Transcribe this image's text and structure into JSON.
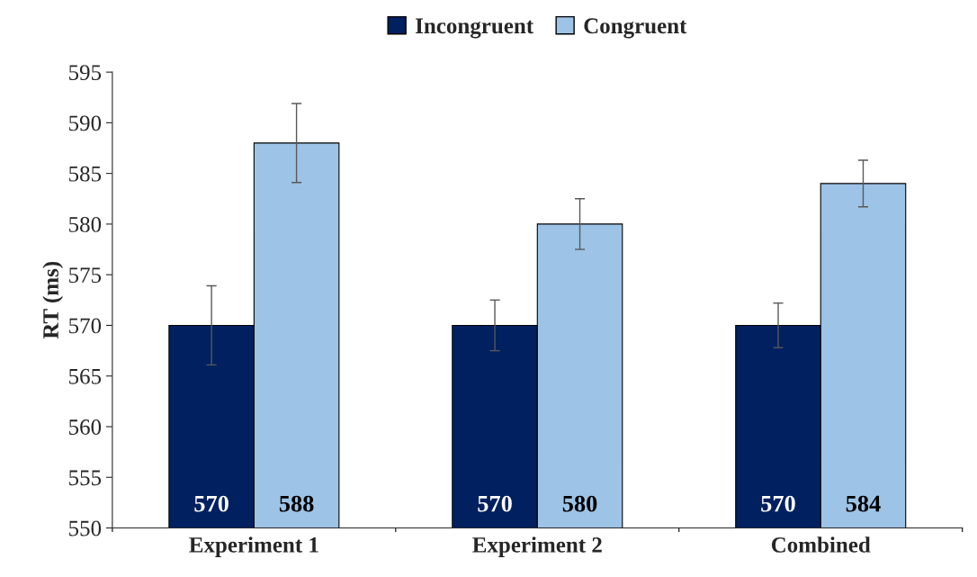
{
  "chart_data": {
    "type": "bar",
    "ylabel": "RT (ms)",
    "categories": [
      "Experiment 1",
      "Experiment 2",
      "Combined"
    ],
    "series": [
      {
        "name": "Incongruent",
        "color": "#002060",
        "values": [
          570,
          570,
          570
        ],
        "errors": [
          3.9,
          2.5,
          2.2
        ]
      },
      {
        "name": "Congruent",
        "color": "#9dc3e6",
        "values": [
          588,
          580,
          584
        ],
        "errors": [
          3.9,
          2.5,
          2.3
        ]
      }
    ],
    "ylim": [
      550,
      595
    ],
    "yticks": [
      550,
      555,
      560,
      565,
      570,
      575,
      580,
      585,
      590,
      595
    ],
    "data_labels": true,
    "legend": "top",
    "grid": false
  }
}
